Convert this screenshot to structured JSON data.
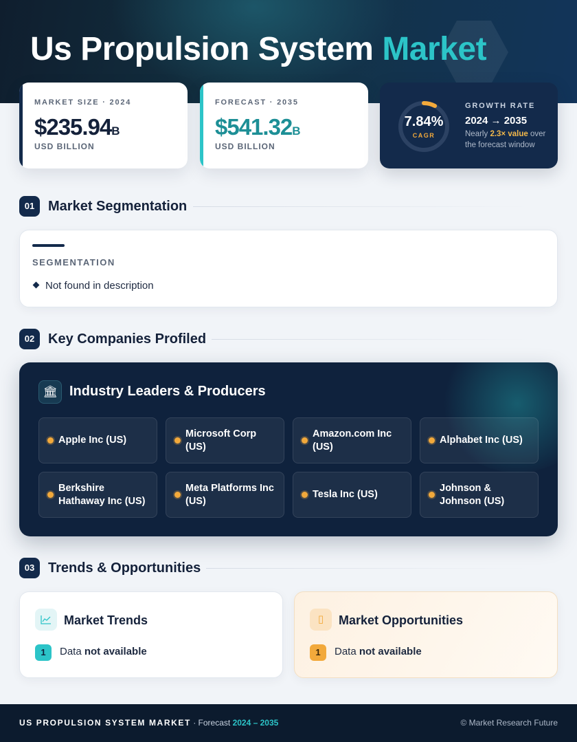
{
  "hero": {
    "title_main": "Us Propulsion System",
    "title_accent": "Market"
  },
  "stats": {
    "market_size": {
      "label": "MARKET SIZE · 2024",
      "value": "$235.94",
      "unit": "B",
      "sub": "USD BILLION",
      "color": "#14213a",
      "bar_color": "#132a4b"
    },
    "forecast": {
      "label": "FORECAST · 2035",
      "value": "$541.32",
      "unit": "B",
      "sub": "USD BILLION",
      "color": "#1d8f96",
      "bar_color": "#2cc4c8"
    }
  },
  "growth": {
    "cagr_value": "7.84%",
    "cagr_label": "CAGR",
    "cagr_fraction": 0.0784,
    "title": "GROWTH RATE",
    "range": "2024 → 2035",
    "note_prefix": "Nearly ",
    "note_highlight": "2.3× value",
    "note_suffix": " over the forecast window"
  },
  "sections": {
    "s1": {
      "num": "01",
      "title": "Market Segmentation"
    },
    "s2": {
      "num": "02",
      "title": "Key Companies Profiled"
    },
    "s3": {
      "num": "03",
      "title": "Trends & Opportunities"
    }
  },
  "segmentation": {
    "label": "SEGMENTATION",
    "item": "Not found in description"
  },
  "companies": {
    "icon": "bank-icon",
    "title": "Industry Leaders & Producers",
    "list": [
      "Apple Inc (US)",
      "Microsoft Corp (US)",
      "Amazon.com Inc (US)",
      "Alphabet Inc (US)",
      "Berkshire Hathaway Inc (US)",
      "Meta Platforms Inc (US)",
      "Tesla Inc (US)",
      "Johnson & Johnson (US)"
    ]
  },
  "trends": {
    "title": "Market Trends",
    "icon": "line-chart-icon",
    "num": "1",
    "text_prefix": "Data ",
    "text_bold": "not available",
    "accent": "#2cc4c8"
  },
  "opportunities": {
    "title": "Market Opportunities",
    "icon": "lightbulb-icon",
    "num": "1",
    "text_prefix": "Data ",
    "text_bold": "not available",
    "accent": "#f2a93b"
  },
  "footer": {
    "brand": "US PROPULSION SYSTEM MARKET",
    "forecast_prefix": " · Forecast ",
    "years": "2024 – 2035",
    "copyright": "© Market Research Future"
  }
}
